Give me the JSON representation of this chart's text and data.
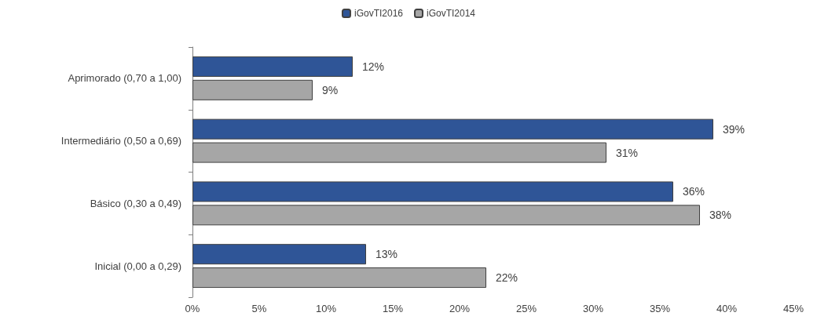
{
  "chart_data": {
    "type": "bar",
    "orientation": "horizontal",
    "categories": [
      "Aprimorado (0,70 a 1,00)",
      "Intermediário (0,50 a 0,69)",
      "Básico (0,30 a 0,49)",
      "Inicial (0,00 a 0,29)"
    ],
    "series": [
      {
        "name": "iGovTI2016",
        "color": "#2f5597",
        "values": [
          12,
          39,
          36,
          13
        ],
        "value_labels": [
          "12%",
          "39%",
          "36%",
          "13%"
        ]
      },
      {
        "name": "iGovTI2014",
        "color": "#a6a6a6",
        "values": [
          9,
          31,
          38,
          22
        ],
        "value_labels": [
          "9%",
          "31%",
          "38%",
          "22%"
        ]
      }
    ],
    "xlim": [
      0,
      45
    ],
    "xticks": [
      {
        "value": 0,
        "label": "0%"
      },
      {
        "value": 5,
        "label": "5%"
      },
      {
        "value": 10,
        "label": "10%"
      },
      {
        "value": 15,
        "label": "15%"
      },
      {
        "value": 20,
        "label": "20%"
      },
      {
        "value": 25,
        "label": "25%"
      },
      {
        "value": 30,
        "label": "30%"
      },
      {
        "value": 35,
        "label": "35%"
      },
      {
        "value": 40,
        "label": "40%"
      },
      {
        "value": 45,
        "label": "45%"
      }
    ],
    "grid": false,
    "legend": "top"
  }
}
